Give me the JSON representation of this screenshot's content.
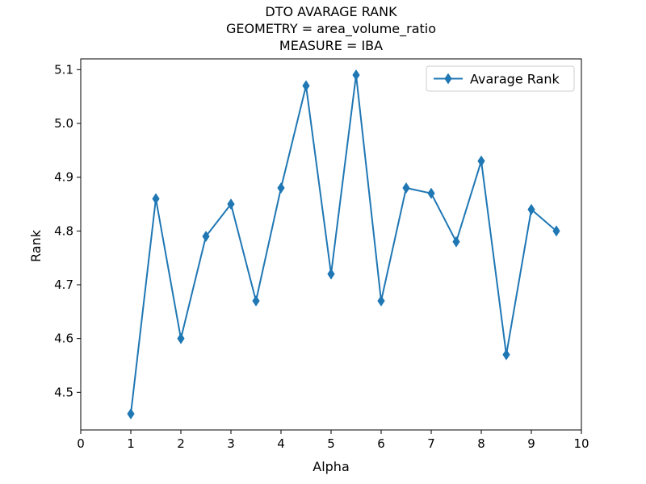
{
  "chart_data": {
    "type": "line",
    "title_lines": [
      "DTO AVARAGE RANK",
      "GEOMETRY = area_volume_ratio",
      "MEASURE = IBA"
    ],
    "xlabel": "Alpha",
    "ylabel": "Rank",
    "xlim": [
      0,
      10
    ],
    "ylim": [
      4.43,
      5.12
    ],
    "xticks": [
      "0",
      "1",
      "2",
      "3",
      "4",
      "5",
      "6",
      "7",
      "8",
      "9",
      "10"
    ],
    "yticks": [
      "4.5",
      "4.6",
      "4.7",
      "4.8",
      "4.9",
      "5.0",
      "5.1"
    ],
    "grid": false,
    "legend_position": "top-right",
    "series": [
      {
        "name": "Avarage Rank",
        "color": "#1f77b4",
        "marker": "diamond",
        "x": [
          1,
          1.5,
          2,
          2.5,
          3,
          3.5,
          4,
          4.5,
          5,
          5.5,
          6,
          6.5,
          7,
          7.5,
          8,
          8.5,
          9,
          9.5
        ],
        "y": [
          4.46,
          4.86,
          4.6,
          4.79,
          4.85,
          4.67,
          4.88,
          5.07,
          4.72,
          5.09,
          4.67,
          4.88,
          4.87,
          4.78,
          4.93,
          4.57,
          4.84,
          4.8
        ]
      }
    ]
  }
}
